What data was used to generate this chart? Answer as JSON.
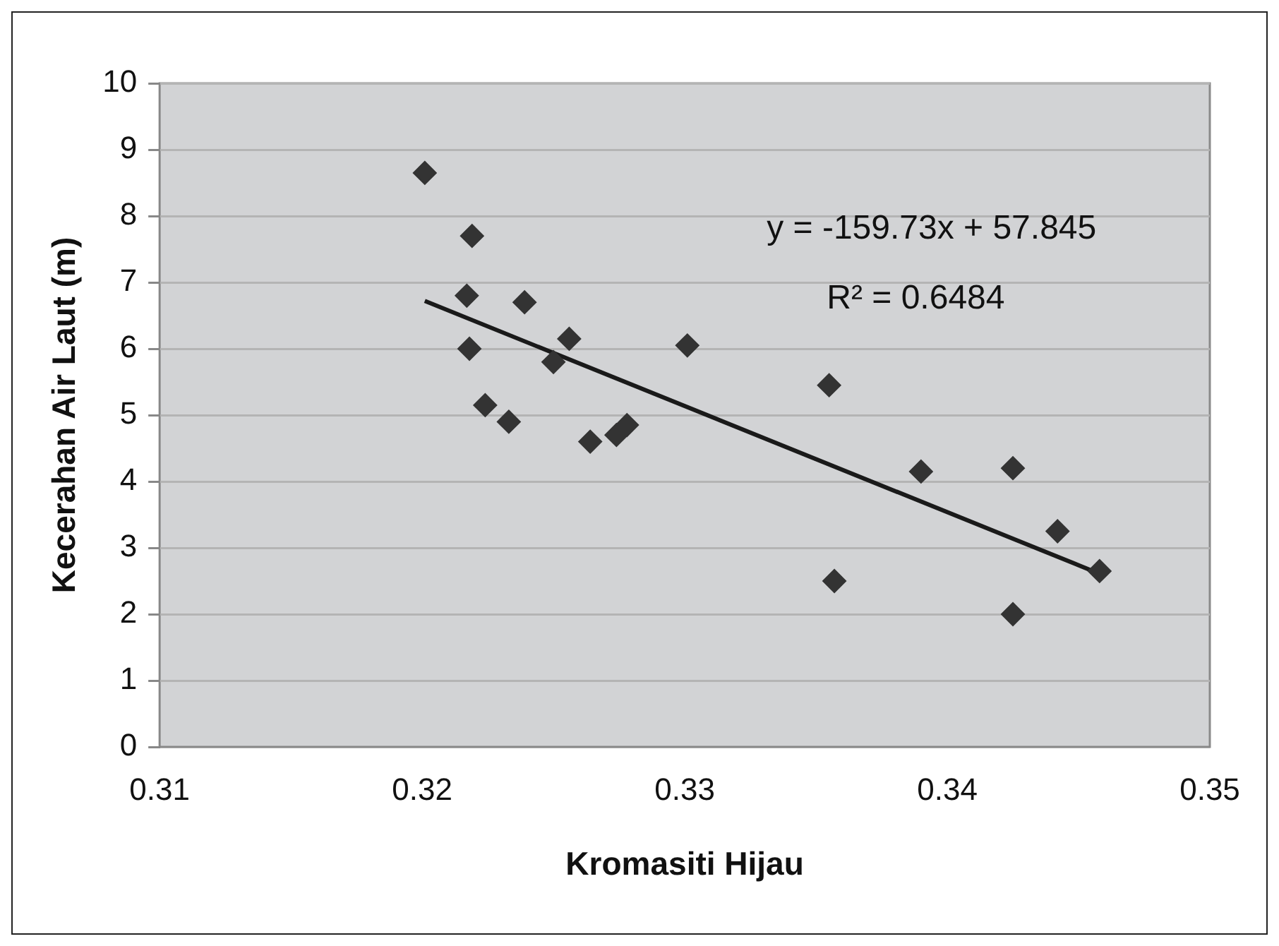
{
  "chart_data": {
    "type": "scatter",
    "xlabel": "Kromasiti Hijau",
    "ylabel": "Kecerahan Air Laut (m)",
    "annotations": [
      "y = -159.73x + 57.845",
      "R² = 0.6484"
    ],
    "series": [
      {
        "type": "scatter",
        "color": "#333333",
        "marker": "diamond",
        "x": [
          0.3201,
          0.3219,
          0.3217,
          0.3218,
          0.3239,
          0.3224,
          0.3233,
          0.3256,
          0.325,
          0.3264,
          0.3274,
          0.3278,
          0.3301,
          0.3355,
          0.3357,
          0.339,
          0.3425,
          0.3442,
          0.3458,
          0.3425
        ],
        "values": [
          8.65,
          7.7,
          6.8,
          6.0,
          6.7,
          5.15,
          4.9,
          6.15,
          5.8,
          4.6,
          4.7,
          4.85,
          6.05,
          5.45,
          2.5,
          4.15,
          4.2,
          3.25,
          2.65,
          2.0
        ]
      },
      {
        "type": "line",
        "color": "#1a1a1a",
        "marker": "none",
        "line_style": "solid",
        "x": [
          0.3201,
          0.3458
        ],
        "values": [
          6.72,
          2.61
        ]
      }
    ],
    "xlim": [
      0.31,
      0.35
    ],
    "xticks": [
      0.31,
      0.32,
      0.33,
      0.34,
      0.35
    ],
    "ylim": [
      0,
      10
    ],
    "yticks": [
      0,
      1,
      2,
      3,
      4,
      5,
      6,
      7,
      8,
      9,
      10
    ],
    "grid": "y",
    "legend": false
  }
}
